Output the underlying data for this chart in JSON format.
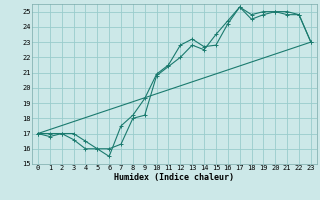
{
  "xlabel": "Humidex (Indice chaleur)",
  "bg_color": "#cce8e8",
  "grid_color": "#99cccc",
  "line_color": "#1a7a6e",
  "xlim": [
    -0.5,
    23.5
  ],
  "ylim": [
    15,
    25.5
  ],
  "xticks": [
    0,
    1,
    2,
    3,
    4,
    5,
    6,
    7,
    8,
    9,
    10,
    11,
    12,
    13,
    14,
    15,
    16,
    17,
    18,
    19,
    20,
    21,
    22,
    23
  ],
  "yticks": [
    15,
    16,
    17,
    18,
    19,
    20,
    21,
    22,
    23,
    24,
    25
  ],
  "line1_x": [
    0,
    1,
    2,
    3,
    4,
    5,
    6,
    7,
    8,
    9,
    10,
    11,
    12,
    13,
    14,
    15,
    16,
    17,
    18,
    19,
    20,
    21,
    22,
    23
  ],
  "line1_y": [
    17.0,
    17.0,
    17.0,
    16.6,
    16.0,
    16.0,
    15.5,
    17.5,
    18.2,
    19.3,
    20.9,
    21.5,
    22.8,
    23.2,
    22.7,
    22.8,
    24.2,
    25.3,
    24.8,
    25.0,
    25.0,
    25.0,
    24.8,
    23.0
  ],
  "line2_x": [
    0,
    1,
    2,
    3,
    4,
    5,
    6,
    7,
    8,
    9,
    10,
    11,
    12,
    13,
    14,
    15,
    16,
    17,
    18,
    19,
    20,
    21,
    22,
    23
  ],
  "line2_y": [
    17.0,
    16.8,
    17.0,
    17.0,
    16.5,
    16.0,
    16.0,
    16.3,
    18.0,
    18.2,
    20.8,
    21.4,
    22.0,
    22.8,
    22.5,
    23.5,
    24.4,
    25.3,
    24.5,
    24.8,
    25.0,
    24.8,
    24.8,
    23.0
  ],
  "line3_x": [
    0,
    23
  ],
  "line3_y": [
    17.0,
    23.0
  ]
}
